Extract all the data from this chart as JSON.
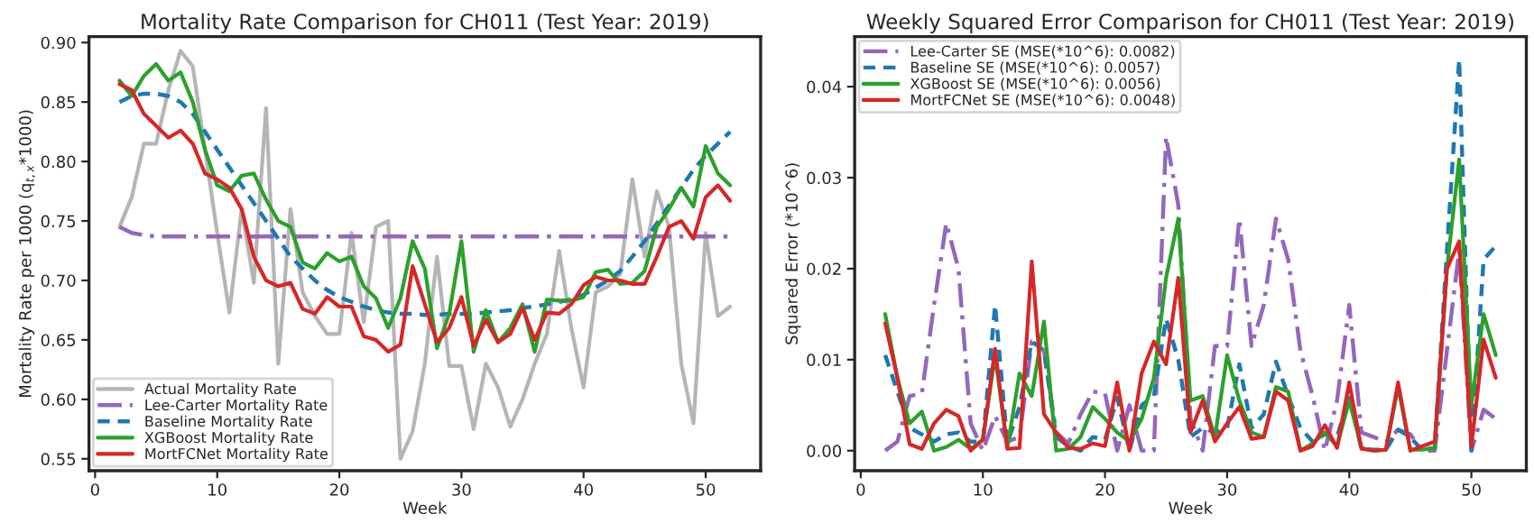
{
  "chart_data": [
    {
      "type": "line",
      "title": "Mortality Rate Comparison for CH011 (Test Year: 2019)",
      "xlabel": "Week",
      "ylabel": "Mortality Rate per 1000 (q$_{t,x}$*1000)",
      "x": [
        2,
        3,
        4,
        5,
        6,
        7,
        8,
        9,
        10,
        11,
        12,
        13,
        14,
        15,
        16,
        17,
        18,
        19,
        20,
        21,
        22,
        23,
        24,
        25,
        26,
        27,
        28,
        29,
        30,
        31,
        32,
        33,
        34,
        35,
        36,
        37,
        38,
        39,
        40,
        41,
        42,
        43,
        44,
        45,
        46,
        47,
        48,
        49,
        50,
        51,
        52
      ],
      "xlim": [
        -0.5,
        54.5
      ],
      "xticks": [
        0,
        10,
        20,
        30,
        40,
        50
      ],
      "ylim": [
        0.54,
        0.905
      ],
      "yticks": [
        {
          "value": 0.55,
          "label": "0.55"
        },
        {
          "value": 0.6,
          "label": "0.60"
        },
        {
          "value": 0.65,
          "label": "0.65"
        },
        {
          "value": 0.7,
          "label": "0.70"
        },
        {
          "value": 0.75,
          "label": "0.75"
        },
        {
          "value": 0.8,
          "label": "0.80"
        },
        {
          "value": 0.85,
          "label": "0.85"
        },
        {
          "value": 0.9,
          "label": "0.90"
        }
      ],
      "legend": "bottom left",
      "grid": false,
      "series": [
        {
          "name": "Actual Mortality Rate",
          "color": "#b5b5b5",
          "line_style": "solid",
          "values": [
            0.745,
            0.77,
            0.815,
            0.815,
            0.86,
            0.893,
            0.88,
            0.81,
            0.74,
            0.673,
            0.76,
            0.698,
            0.845,
            0.63,
            0.76,
            0.69,
            0.67,
            0.655,
            0.655,
            0.74,
            0.665,
            0.745,
            0.75,
            0.55,
            0.573,
            0.63,
            0.72,
            0.628,
            0.628,
            0.575,
            0.63,
            0.61,
            0.577,
            0.6,
            0.63,
            0.655,
            0.725,
            0.66,
            0.61,
            0.69,
            0.695,
            0.705,
            0.785,
            0.72,
            0.775,
            0.745,
            0.63,
            0.58,
            0.74,
            0.67,
            0.678
          ]
        },
        {
          "name": "Lee-Carter Mortality Rate",
          "color": "#9467bd",
          "line_style": "dashdot",
          "values": [
            0.745,
            0.74,
            0.738,
            0.737,
            0.737,
            0.737,
            0.737,
            0.737,
            0.737,
            0.737,
            0.737,
            0.737,
            0.737,
            0.737,
            0.737,
            0.737,
            0.737,
            0.737,
            0.737,
            0.737,
            0.737,
            0.737,
            0.737,
            0.737,
            0.737,
            0.737,
            0.737,
            0.737,
            0.737,
            0.737,
            0.737,
            0.737,
            0.737,
            0.737,
            0.737,
            0.737,
            0.737,
            0.737,
            0.737,
            0.737,
            0.737,
            0.737,
            0.737,
            0.737,
            0.737,
            0.737,
            0.737,
            0.737,
            0.737,
            0.737,
            0.737
          ]
        },
        {
          "name": "Baseline Mortality Rate",
          "color": "#1f77b4",
          "line_style": "dashed",
          "values": [
            0.85,
            0.855,
            0.857,
            0.857,
            0.855,
            0.85,
            0.84,
            0.825,
            0.81,
            0.795,
            0.78,
            0.765,
            0.75,
            0.735,
            0.72,
            0.71,
            0.7,
            0.692,
            0.686,
            0.682,
            0.678,
            0.675,
            0.673,
            0.672,
            0.672,
            0.671,
            0.671,
            0.672,
            0.672,
            0.672,
            0.673,
            0.674,
            0.675,
            0.677,
            0.678,
            0.68,
            0.682,
            0.684,
            0.688,
            0.694,
            0.7,
            0.708,
            0.72,
            0.733,
            0.748,
            0.763,
            0.778,
            0.793,
            0.805,
            0.815,
            0.825
          ]
        },
        {
          "name": "XGBoost Mortality Rate",
          "color": "#2ca02c",
          "line_style": "solid",
          "values": [
            0.868,
            0.855,
            0.872,
            0.882,
            0.868,
            0.875,
            0.85,
            0.81,
            0.78,
            0.775,
            0.788,
            0.79,
            0.768,
            0.75,
            0.745,
            0.715,
            0.71,
            0.723,
            0.716,
            0.72,
            0.695,
            0.685,
            0.66,
            0.685,
            0.733,
            0.71,
            0.643,
            0.672,
            0.733,
            0.64,
            0.675,
            0.648,
            0.66,
            0.68,
            0.64,
            0.684,
            0.683,
            0.683,
            0.686,
            0.707,
            0.709,
            0.697,
            0.698,
            0.708,
            0.745,
            0.76,
            0.778,
            0.762,
            0.813,
            0.79,
            0.78
          ]
        },
        {
          "name": "MortFCNet Mortality Rate",
          "color": "#d62728",
          "line_style": "solid",
          "values": [
            0.865,
            0.86,
            0.84,
            0.83,
            0.82,
            0.826,
            0.815,
            0.79,
            0.785,
            0.778,
            0.76,
            0.72,
            0.7,
            0.695,
            0.698,
            0.676,
            0.672,
            0.686,
            0.678,
            0.678,
            0.653,
            0.65,
            0.64,
            0.646,
            0.712,
            0.68,
            0.648,
            0.66,
            0.686,
            0.645,
            0.667,
            0.648,
            0.655,
            0.677,
            0.65,
            0.673,
            0.672,
            0.68,
            0.696,
            0.703,
            0.7,
            0.7,
            0.697,
            0.697,
            0.72,
            0.745,
            0.75,
            0.735,
            0.77,
            0.78,
            0.767
          ]
        }
      ]
    },
    {
      "type": "line",
      "title": "Weekly Squared Error Comparison for CH011 (Test Year: 2019)",
      "xlabel": "Week",
      "ylabel": "Squared Error (*10^6)",
      "x": [
        2,
        3,
        4,
        5,
        6,
        7,
        8,
        9,
        10,
        11,
        12,
        13,
        14,
        15,
        16,
        17,
        18,
        19,
        20,
        21,
        22,
        23,
        24,
        25,
        26,
        27,
        28,
        29,
        30,
        31,
        32,
        33,
        34,
        35,
        36,
        37,
        38,
        39,
        40,
        41,
        42,
        43,
        44,
        45,
        46,
        47,
        48,
        49,
        50,
        51,
        52
      ],
      "xlim": [
        -0.5,
        54.5
      ],
      "xticks": [
        0,
        10,
        20,
        30,
        40,
        50
      ],
      "ylim": [
        -0.0022,
        0.0455
      ],
      "yticks": [
        {
          "value": 0,
          "label": "0.00"
        },
        {
          "value": 0.01,
          "label": "0.01"
        },
        {
          "value": 0.02,
          "label": "0.02"
        },
        {
          "value": 0.03,
          "label": "0.03"
        },
        {
          "value": 0.04,
          "label": "0.04"
        }
      ],
      "legend": "top left",
      "grid": false,
      "series": [
        {
          "name": "Lee-Carter SE (MSE(*10^6): 0.0082)",
          "color": "#9467bd",
          "line_style": "dashdot",
          "values": [
            0.0,
            0.001,
            0.006,
            0.0063,
            0.016,
            0.025,
            0.02,
            0.003,
            0.0,
            0.0038,
            0.001,
            0.0015,
            0.012,
            0.011,
            0.002,
            0.0008,
            0.004,
            0.0065,
            0.0063,
            0.0,
            0.005,
            0.0,
            0.0,
            0.0345,
            0.027,
            0.0035,
            0.0,
            0.0115,
            0.0115,
            0.0255,
            0.0115,
            0.016,
            0.0255,
            0.021,
            0.011,
            0.006,
            0.0,
            0.0055,
            0.016,
            0.002,
            0.0015,
            0.001,
            0.0023,
            0.0018,
            0.0,
            0.0,
            0.011,
            0.022,
            0.0,
            0.0045,
            0.0035
          ]
        },
        {
          "name": "Baseline SE (MSE(*10^6): 0.0057)",
          "color": "#1f77b4",
          "line_style": "dashed",
          "values": [
            0.0105,
            0.0065,
            0.0025,
            0.0018,
            0.001,
            0.0018,
            0.002,
            0.001,
            0.001,
            0.016,
            0.0008,
            0.0048,
            0.012,
            0.011,
            0.0015,
            0.0005,
            0.0,
            0.0015,
            0.0012,
            0.0058,
            0.0,
            0.005,
            0.006,
            0.0145,
            0.01,
            0.0015,
            0.0025,
            0.002,
            0.0025,
            0.0095,
            0.0025,
            0.004,
            0.0098,
            0.006,
            0.0025,
            0.001,
            0.0018,
            0.0015,
            0.006,
            0.0002,
            0.0001,
            0.0001,
            0.0023,
            0.0015,
            0.0,
            0.0004,
            0.022,
            0.043,
            0.0,
            0.021,
            0.0225
          ]
        },
        {
          "name": "XGBoost SE (MSE(*10^6): 0.0056)",
          "color": "#2ca02c",
          "line_style": "solid",
          "values": [
            0.015,
            0.008,
            0.003,
            0.0043,
            0.0,
            0.0004,
            0.0012,
            0.0002,
            0.0012,
            0.0105,
            0.0003,
            0.0085,
            0.006,
            0.0142,
            0.0,
            0.0002,
            0.0015,
            0.0048,
            0.0035,
            0.002,
            0.001,
            0.0035,
            0.008,
            0.019,
            0.0255,
            0.0055,
            0.006,
            0.0015,
            0.0105,
            0.0055,
            0.002,
            0.0015,
            0.007,
            0.0065,
            0.0,
            0.0008,
            0.002,
            0.0005,
            0.0055,
            0.0003,
            0.0,
            0.0001,
            0.007,
            0.0001,
            0.0001,
            0.0003,
            0.02,
            0.032,
            0.005,
            0.015,
            0.0105
          ]
        },
        {
          "name": "MortFCNet SE (MSE(*10^6): 0.0048)",
          "color": "#d62728",
          "line_style": "solid",
          "values": [
            0.014,
            0.008,
            0.0007,
            0.0002,
            0.003,
            0.0045,
            0.0038,
            0.0,
            0.0012,
            0.0112,
            0.0002,
            0.0003,
            0.0208,
            0.004,
            0.002,
            0.0003,
            0.0002,
            0.0008,
            0.0005,
            0.0075,
            0.0,
            0.0085,
            0.012,
            0.0095,
            0.019,
            0.002,
            0.0055,
            0.001,
            0.003,
            0.0048,
            0.0013,
            0.0015,
            0.0065,
            0.0055,
            0.0,
            0.0005,
            0.0028,
            0.0003,
            0.0075,
            0.0002,
            0.0,
            0.0001,
            0.0075,
            0.0,
            0.0005,
            0.001,
            0.02,
            0.023,
            0.0005,
            0.0122,
            0.008
          ]
        }
      ]
    }
  ]
}
